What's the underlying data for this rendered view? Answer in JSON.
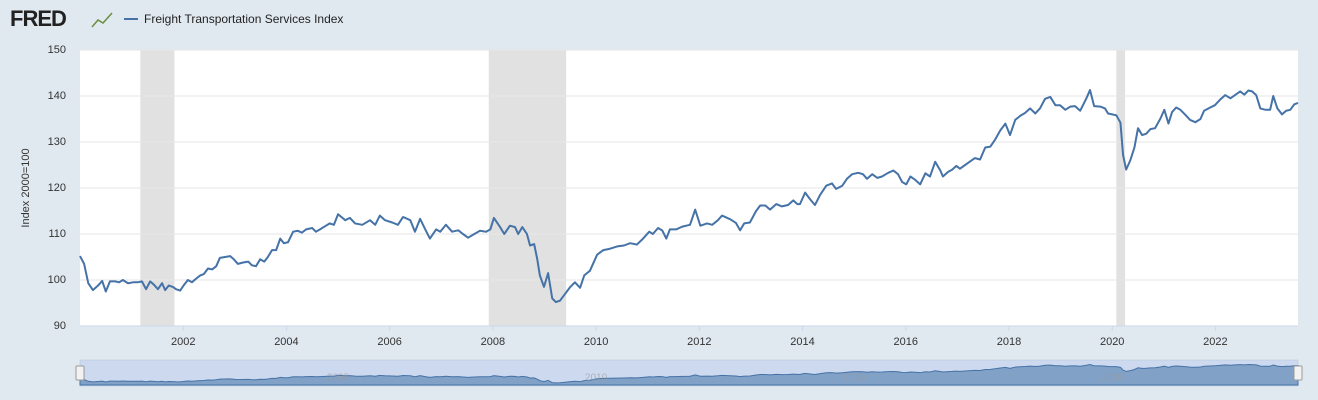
{
  "chart_data": {
    "type": "line",
    "source_logo": "FRED",
    "y_label": "Index 2000=100",
    "xlim": [
      2000,
      2023.6
    ],
    "xticks": [
      2002,
      2004,
      2006,
      2008,
      2010,
      2012,
      2014,
      2016,
      2018,
      2020,
      2022
    ],
    "ylim": [
      90,
      150
    ],
    "yticks": [
      90,
      100,
      110,
      120,
      130,
      140,
      150
    ],
    "grid": true,
    "recessions": [
      [
        2001.17,
        2001.83
      ],
      [
        2007.92,
        2009.42
      ],
      [
        2020.08,
        2020.25
      ]
    ],
    "navigator_ticks": [
      2005,
      2010,
      2015,
      2020
    ],
    "x": [
      2000.0,
      2000.08,
      2000.16,
      2000.25,
      2000.35,
      2000.43,
      2000.5,
      2000.58,
      2000.68,
      2000.76,
      2000.83,
      2000.93,
      2001.03,
      2001.12,
      2001.2,
      2001.28,
      2001.36,
      2001.43,
      2001.51,
      2001.59,
      2001.65,
      2001.72,
      2001.8,
      2001.86,
      2001.94,
      2002.02,
      2002.09,
      2002.17,
      2002.25,
      2002.33,
      2002.4,
      2002.48,
      2002.56,
      2002.64,
      2002.71,
      2002.81,
      2002.91,
      2002.98,
      2003.06,
      2003.16,
      2003.26,
      2003.33,
      2003.41,
      2003.49,
      2003.57,
      2003.64,
      2003.72,
      2003.8,
      2003.88,
      2003.95,
      2004.03,
      2004.13,
      2004.22,
      2004.3,
      2004.38,
      2004.5,
      2004.57,
      2004.65,
      2004.75,
      2004.84,
      2004.92,
      2005.0,
      2005.14,
      2005.23,
      2005.33,
      2005.47,
      2005.62,
      2005.72,
      2005.81,
      2005.91,
      2006.05,
      2006.16,
      2006.26,
      2006.4,
      2006.49,
      2006.59,
      2006.69,
      2006.78,
      2006.9,
      2006.98,
      2007.09,
      2007.21,
      2007.33,
      2007.42,
      2007.52,
      2007.64,
      2007.75,
      2007.87,
      2007.95,
      2008.02,
      2008.14,
      2008.22,
      2008.33,
      2008.43,
      2008.49,
      2008.57,
      2008.66,
      2008.72,
      2008.8,
      2008.86,
      2008.91,
      2008.99,
      2009.07,
      2009.15,
      2009.22,
      2009.3,
      2009.4,
      2009.5,
      2009.59,
      2009.69,
      2009.77,
      2009.88,
      2010.02,
      2010.14,
      2010.27,
      2010.41,
      2010.54,
      2010.66,
      2010.79,
      2010.91,
      2011.03,
      2011.1,
      2011.2,
      2011.28,
      2011.36,
      2011.43,
      2011.55,
      2011.67,
      2011.82,
      2011.92,
      2012.02,
      2012.15,
      2012.25,
      2012.36,
      2012.44,
      2012.6,
      2012.71,
      2012.79,
      2012.87,
      2012.98,
      2013.1,
      2013.18,
      2013.28,
      2013.37,
      2013.49,
      2013.6,
      2013.72,
      2013.82,
      2013.9,
      2013.95,
      2014.05,
      2014.15,
      2014.24,
      2014.34,
      2014.46,
      2014.57,
      2014.65,
      2014.77,
      2014.86,
      2014.96,
      2015.08,
      2015.17,
      2015.25,
      2015.35,
      2015.45,
      2015.54,
      2015.66,
      2015.76,
      2015.85,
      2015.93,
      2016.01,
      2016.09,
      2016.18,
      2016.28,
      2016.38,
      2016.47,
      2016.57,
      2016.67,
      2016.72,
      2016.82,
      2016.9,
      2016.98,
      2017.05,
      2017.15,
      2017.25,
      2017.34,
      2017.44,
      2017.54,
      2017.64,
      2017.73,
      2017.83,
      2017.93,
      2018.02,
      2018.12,
      2018.22,
      2018.31,
      2018.41,
      2018.51,
      2018.6,
      2018.7,
      2018.8,
      2018.9,
      2018.99,
      2019.09,
      2019.19,
      2019.28,
      2019.38,
      2019.5,
      2019.57,
      2019.65,
      2019.77,
      2019.86,
      2019.92,
      2020.0,
      2020.08,
      2020.16,
      2020.21,
      2020.27,
      2020.35,
      2020.43,
      2020.5,
      2020.58,
      2020.66,
      2020.74,
      2020.83,
      2020.93,
      2021.01,
      2021.09,
      2021.16,
      2021.24,
      2021.32,
      2021.41,
      2021.51,
      2021.61,
      2021.71,
      2021.78,
      2021.9,
      2021.99,
      2022.09,
      2022.19,
      2022.29,
      2022.38,
      2022.48,
      2022.56,
      2022.64,
      2022.71,
      2022.79,
      2022.87,
      2022.97,
      2023.06,
      2023.12,
      2023.2,
      2023.29,
      2023.37,
      2023.45,
      2023.53,
      2023.6
    ],
    "series": [
      {
        "name": "Freight Transportation Services Index",
        "color": "#4572a7",
        "values": [
          105.2,
          103.5,
          99.3,
          97.8,
          98.8,
          99.8,
          97.5,
          99.7,
          99.7,
          99.5,
          100,
          99.3,
          99.5,
          99.5,
          99.7,
          98,
          99.7,
          99,
          98,
          99.3,
          97.8,
          98.8,
          98.5,
          98,
          97.7,
          99,
          100,
          99.5,
          100.3,
          101,
          101.3,
          102.5,
          102.3,
          103,
          104.8,
          105,
          105.2,
          104.5,
          103.5,
          103.8,
          104,
          103.2,
          103,
          104.5,
          104,
          105,
          106.5,
          106.5,
          109,
          108,
          108.2,
          110.5,
          110.7,
          110.3,
          111,
          111.3,
          110.5,
          111,
          111.7,
          112.3,
          112,
          114.3,
          113,
          113.5,
          112.3,
          112,
          113,
          112,
          114,
          113,
          112.5,
          112,
          113.7,
          113,
          110.5,
          113.3,
          111,
          109,
          111,
          110.5,
          112,
          110.5,
          110.8,
          110,
          109.2,
          110,
          110.7,
          110.5,
          111,
          113.5,
          111.5,
          110,
          111.8,
          111.5,
          110,
          111.5,
          110,
          107.5,
          107.8,
          104.5,
          101,
          98.5,
          101.5,
          96,
          95.2,
          95.5,
          97,
          98.5,
          99.5,
          98.3,
          101,
          102,
          105.5,
          106.5,
          106.8,
          107.3,
          107.5,
          108,
          107.7,
          109,
          110.5,
          110,
          111.3,
          110.8,
          109,
          111,
          111,
          111.6,
          112,
          115.3,
          111.8,
          112.3,
          112,
          113,
          114,
          113.2,
          112.4,
          110.8,
          112.3,
          112.5,
          115,
          116.2,
          116.2,
          115.3,
          116.5,
          116,
          116.3,
          117.3,
          116.5,
          116.5,
          119,
          117.5,
          116.3,
          118.5,
          120.5,
          121,
          119.8,
          120.5,
          122,
          123,
          123.3,
          123,
          122,
          123,
          122.2,
          122.5,
          123.3,
          123.8,
          123,
          121.3,
          120.8,
          122.5,
          121.8,
          120.8,
          123.2,
          122.5,
          125.7,
          123.8,
          122.5,
          123.5,
          124,
          124.8,
          124.2,
          125,
          125.8,
          126.5,
          126.2,
          128.8,
          129,
          130.5,
          132.5,
          134,
          131.5,
          134.8,
          135.7,
          136.3,
          137.3,
          136.2,
          137.3,
          139.4,
          139.8,
          138,
          138,
          137,
          137.7,
          137.8,
          136.8,
          139.5,
          141.3,
          137.8,
          137.7,
          137.3,
          136.2,
          136,
          135.8,
          134.2,
          127.2,
          124,
          126,
          128.8,
          133,
          131.5,
          131.8,
          132.8,
          133,
          135,
          137,
          134,
          136.5,
          137.5,
          137,
          136,
          134.8,
          134.3,
          135,
          136.8,
          137.5,
          138,
          139.2,
          140.2,
          139.5,
          140.2,
          141,
          140.3,
          141.2,
          141,
          140.2,
          137.3,
          137,
          137,
          140,
          137.3,
          136,
          136.8,
          137,
          138.2,
          138.5
        ]
      }
    ]
  }
}
